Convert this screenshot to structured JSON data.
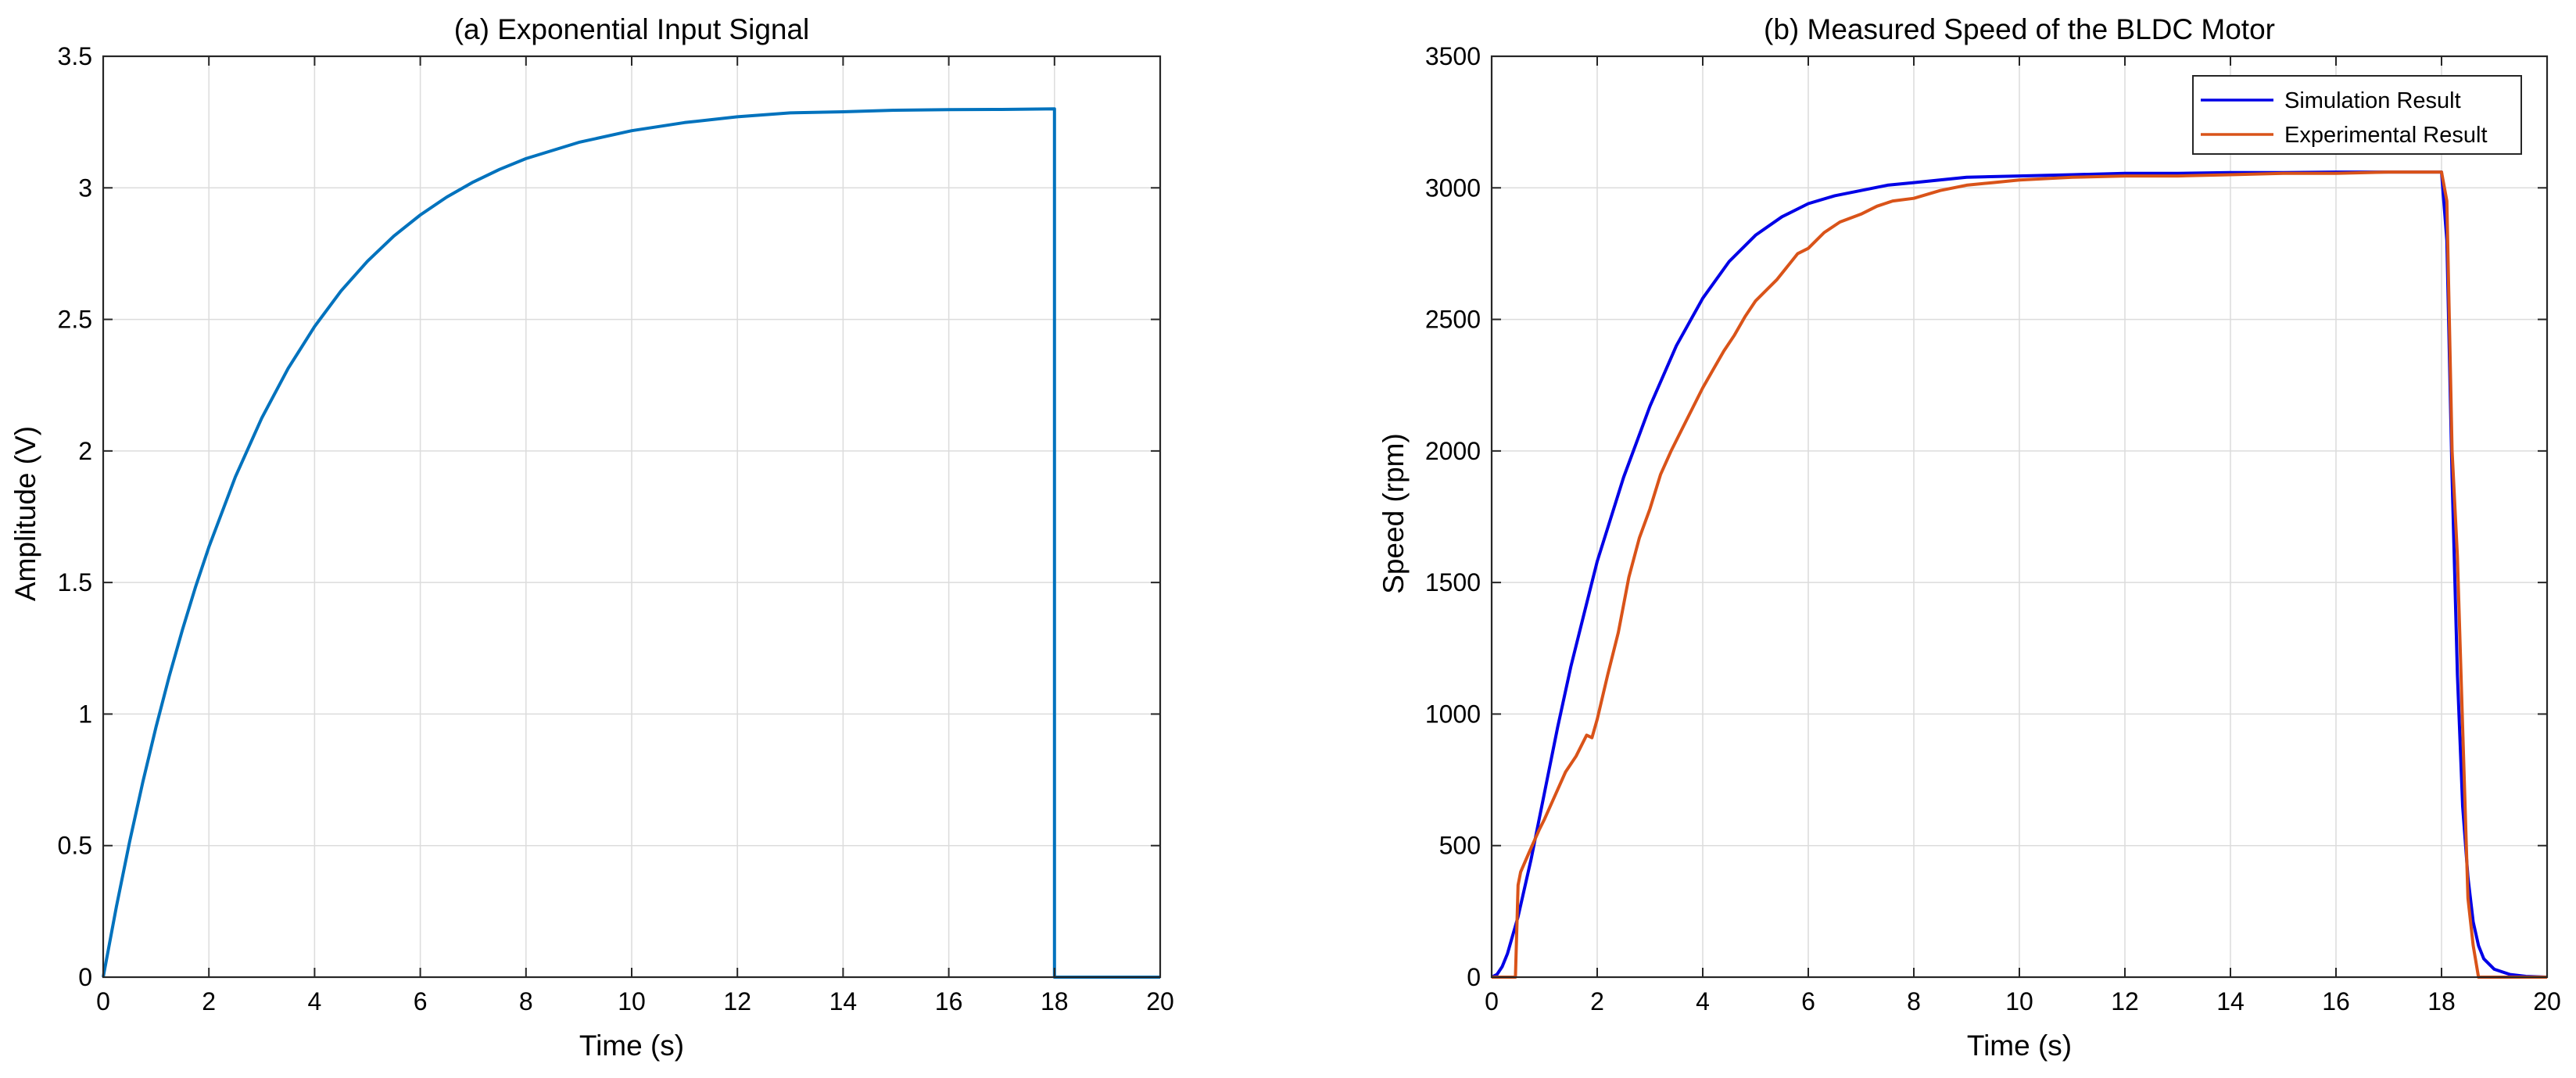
{
  "colors": {
    "panel_a_line": "#0072BD",
    "simulation": "#0000E6",
    "experimental": "#D95319",
    "grid": "#DCDCDC",
    "axes": "#262626"
  },
  "chart_data": [
    {
      "type": "line",
      "title": "(a) Exponential Input Signal",
      "xlabel": "Time (s)",
      "ylabel": "Amplitude (V)",
      "xlim": [
        0,
        20
      ],
      "ylim": [
        0,
        3.5
      ],
      "x_ticks": [
        "0",
        "2",
        "4",
        "6",
        "8",
        "10",
        "12",
        "14",
        "16",
        "18",
        "20"
      ],
      "y_ticks": [
        "0",
        "0.5",
        "1",
        "1.5",
        "2",
        "2.5",
        "3",
        "3.5"
      ],
      "grid": true,
      "series": [
        {
          "name": "",
          "color": "#0072BD",
          "x": [
            0,
            0.25,
            0.5,
            0.75,
            1,
            1.25,
            1.5,
            1.75,
            2,
            2.5,
            3,
            3.5,
            4,
            4.5,
            5,
            5.5,
            6,
            6.5,
            7,
            7.5,
            8,
            9,
            10,
            11,
            12,
            13,
            14,
            15,
            16,
            17,
            18,
            18,
            19,
            20
          ],
          "y": [
            0,
            0.268,
            0.515,
            0.742,
            0.951,
            1.144,
            1.321,
            1.485,
            1.635,
            1.901,
            2.125,
            2.314,
            2.473,
            2.608,
            2.721,
            2.817,
            2.897,
            2.965,
            3.022,
            3.07,
            3.111,
            3.173,
            3.217,
            3.248,
            3.27,
            3.285,
            3.289,
            3.295,
            3.297,
            3.298,
            3.3,
            0,
            0,
            0
          ]
        }
      ]
    },
    {
      "type": "line",
      "title": "(b) Measured Speed of the BLDC Motor",
      "xlabel": "Time (s)",
      "ylabel": "Speed (rpm)",
      "xlim": [
        0,
        20
      ],
      "ylim": [
        0,
        3500
      ],
      "x_ticks": [
        "0",
        "2",
        "4",
        "6",
        "8",
        "10",
        "12",
        "14",
        "16",
        "18",
        "20"
      ],
      "y_ticks": [
        "0",
        "500",
        "1000",
        "1500",
        "2000",
        "2500",
        "3000",
        "3500"
      ],
      "grid": true,
      "legend_position": "top-right",
      "series": [
        {
          "name": "Simulation Result",
          "color": "#0000E6",
          "x": [
            0,
            0.1,
            0.2,
            0.3,
            0.5,
            0.75,
            1,
            1.25,
            1.5,
            1.75,
            2,
            2.5,
            3,
            3.5,
            4,
            4.5,
            5,
            5.5,
            6,
            6.5,
            7,
            7.5,
            8,
            9,
            10,
            11,
            12,
            13,
            14,
            15,
            16,
            17,
            18,
            18.1,
            18.2,
            18.3,
            18.4,
            18.5,
            18.6,
            18.7,
            18.8,
            19,
            19.3,
            19.6,
            20
          ],
          "y": [
            0,
            10,
            40,
            90,
            230,
            450,
            700,
            950,
            1180,
            1380,
            1580,
            1900,
            2170,
            2400,
            2580,
            2720,
            2820,
            2890,
            2940,
            2970,
            2990,
            3010,
            3020,
            3040,
            3045,
            3050,
            3055,
            3055,
            3058,
            3058,
            3060,
            3060,
            3060,
            2800,
            1900,
            1150,
            650,
            380,
            210,
            120,
            70,
            30,
            10,
            3,
            0
          ]
        },
        {
          "name": "Experimental Result",
          "color": "#D95319",
          "x": [
            0,
            0.45,
            0.5,
            0.55,
            0.7,
            0.9,
            1,
            1.2,
            1.4,
            1.6,
            1.8,
            1.9,
            2,
            2.2,
            2.4,
            2.6,
            2.8,
            3,
            3.2,
            3.4,
            3.6,
            3.8,
            4,
            4.2,
            4.4,
            4.6,
            4.8,
            5,
            5.2,
            5.4,
            5.6,
            5.8,
            6,
            6.3,
            6.6,
            7,
            7.3,
            7.6,
            8,
            8.5,
            9,
            9.5,
            10,
            11,
            12,
            13,
            14,
            15,
            16,
            17,
            18,
            18.1,
            18.2,
            18.3,
            18.4,
            18.5,
            18.6,
            18.7,
            19,
            20
          ],
          "y": [
            0,
            0,
            350,
            400,
            470,
            560,
            600,
            690,
            780,
            840,
            920,
            910,
            980,
            1150,
            1310,
            1520,
            1670,
            1780,
            1910,
            2000,
            2080,
            2160,
            2240,
            2310,
            2380,
            2440,
            2510,
            2570,
            2610,
            2650,
            2700,
            2750,
            2770,
            2830,
            2870,
            2900,
            2930,
            2950,
            2960,
            2990,
            3010,
            3020,
            3030,
            3040,
            3045,
            3045,
            3050,
            3055,
            3055,
            3060,
            3060,
            2950,
            2000,
            1600,
            950,
            300,
            120,
            0,
            0,
            0
          ]
        }
      ]
    }
  ]
}
